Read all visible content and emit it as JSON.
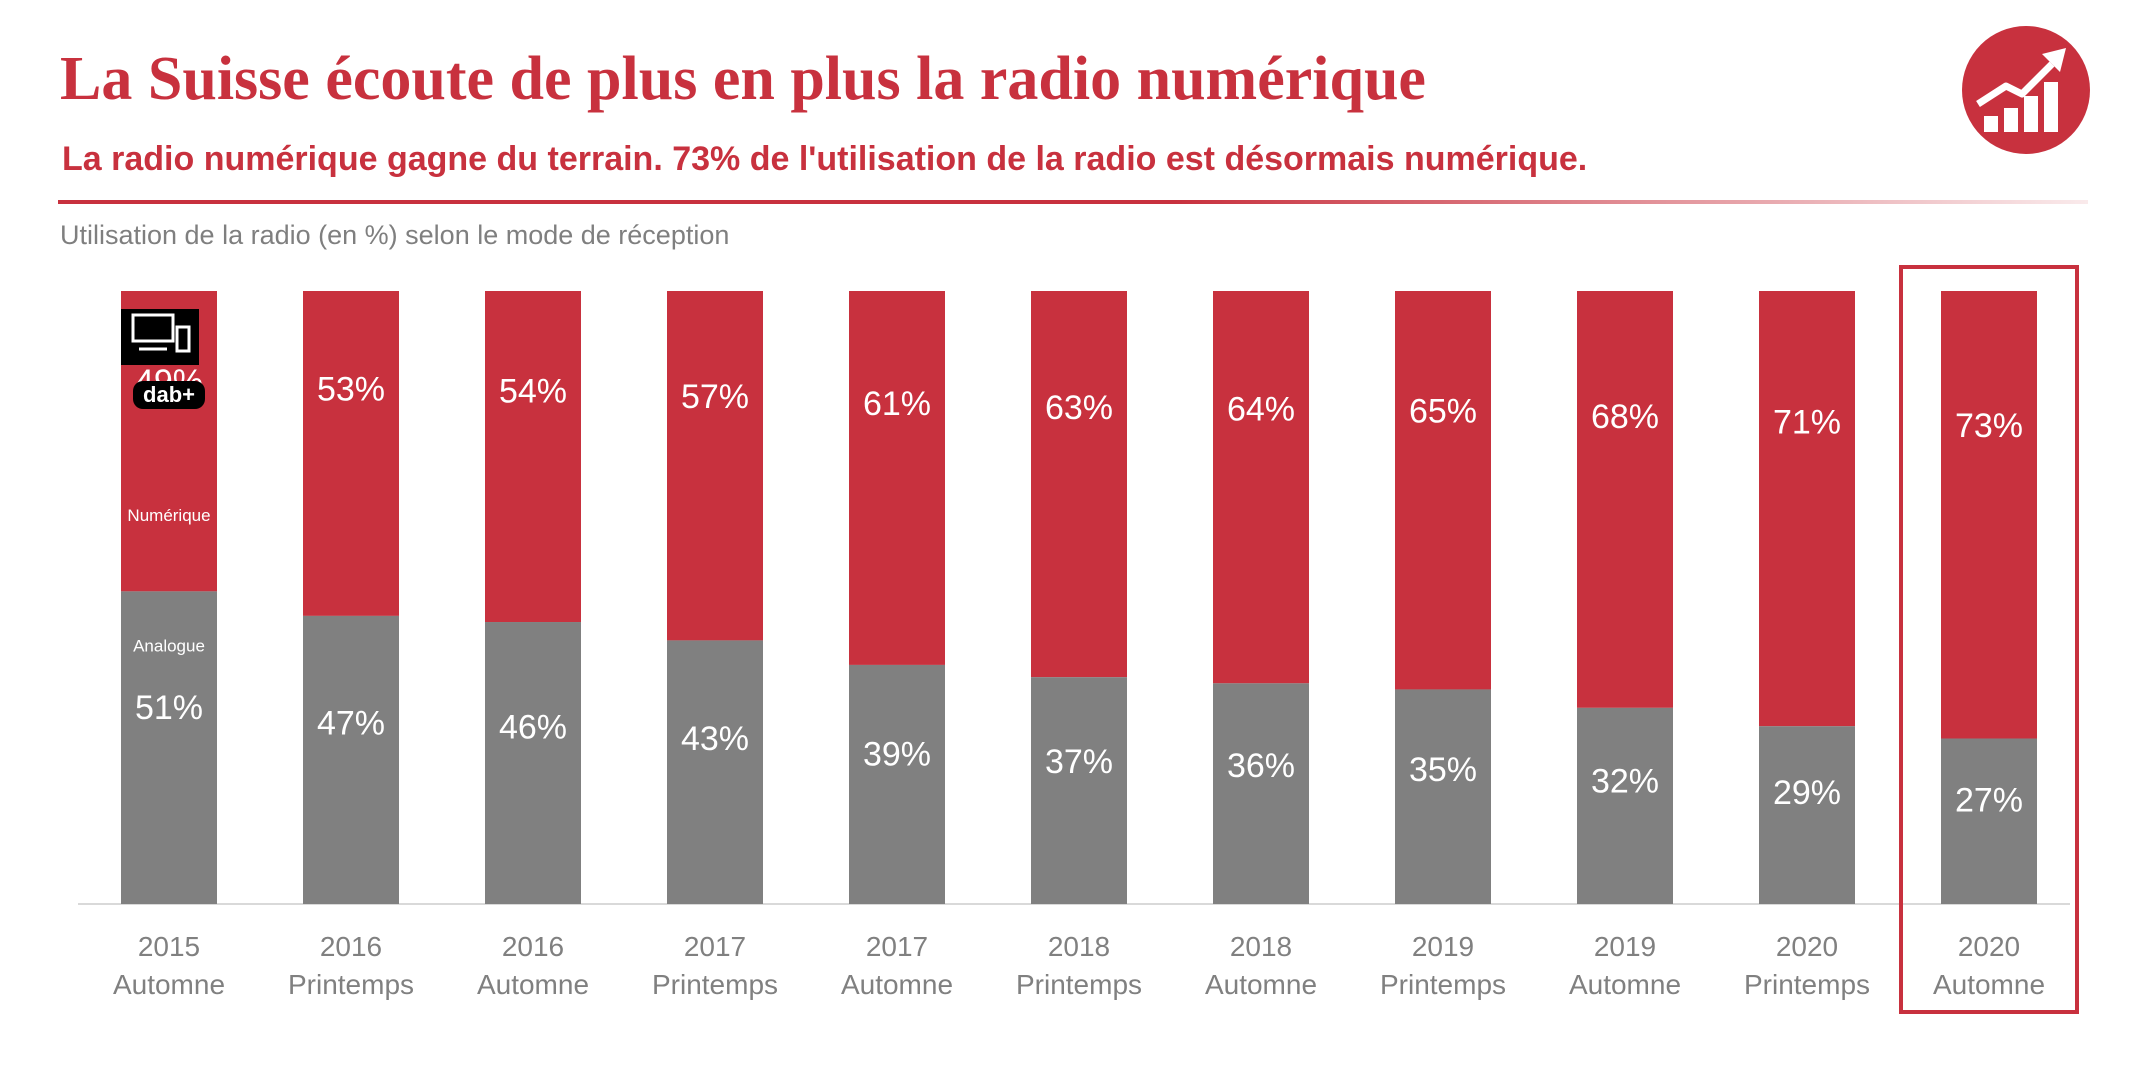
{
  "header": {
    "title": "La Suisse écoute de plus en plus la radio numérique",
    "subtitle": "La radio numérique gagne du terrain. 73% de l'utilisation de la radio est désormais numérique.",
    "logo_icon": "trending-up-chart-icon"
  },
  "chart_data": {
    "type": "bar",
    "stacked": true,
    "title": "Utilisation de la radio (en %) selon le mode de réception",
    "categories": [
      [
        "2015",
        "Automne"
      ],
      [
        "2016",
        "Printemps"
      ],
      [
        "2016",
        "Automne"
      ],
      [
        "2017",
        "Printemps"
      ],
      [
        "2017",
        "Automne"
      ],
      [
        "2018",
        "Printemps"
      ],
      [
        "2018",
        "Automne"
      ],
      [
        "2019",
        "Printemps"
      ],
      [
        "2019",
        "Automne"
      ],
      [
        "2020",
        "Printemps"
      ],
      [
        "2020",
        "Automne"
      ]
    ],
    "series": [
      {
        "name": "Analogue",
        "color": "#808080",
        "values": [
          51,
          47,
          46,
          43,
          39,
          37,
          36,
          35,
          32,
          29,
          27
        ],
        "labels": [
          "51%",
          "47%",
          "46%",
          "43%",
          "39%",
          "37%",
          "36%",
          "35%",
          "32%",
          "29%",
          "27%"
        ]
      },
      {
        "name": "Numérique",
        "color": "#c8313e",
        "values": [
          49,
          53,
          54,
          57,
          61,
          63,
          64,
          65,
          68,
          71,
          73
        ],
        "labels": [
          "49%",
          "53%",
          "54%",
          "57%",
          "61%",
          "63%",
          "64%",
          "65%",
          "68%",
          "71%",
          "73%"
        ]
      }
    ],
    "ylim": [
      0,
      100
    ],
    "legend": "inline-first-bar",
    "icons": [
      "computer-icon",
      "dab-plus-icon"
    ],
    "dab_label": "dab+",
    "highlighted_category": [
      "2020",
      "Automne"
    ],
    "highlight_color": "#c8313e",
    "grid": false
  }
}
